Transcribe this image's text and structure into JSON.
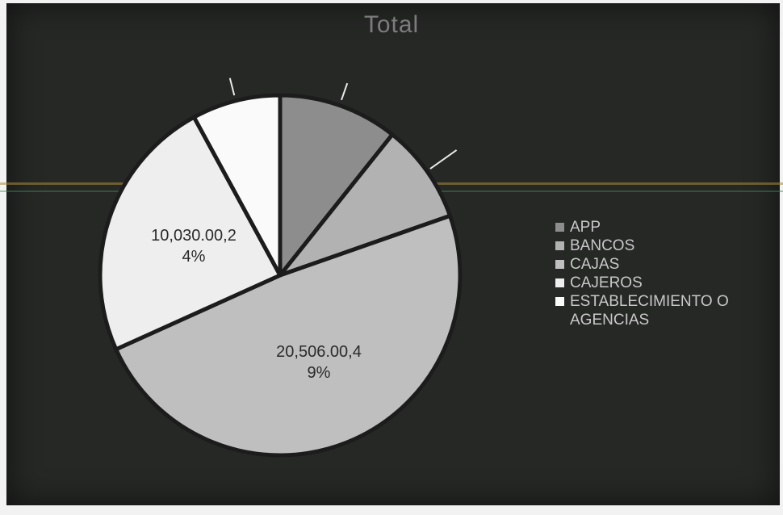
{
  "chart_data": {
    "type": "pie",
    "title": "Total",
    "categories": [
      "APP",
      "BANCOS",
      "CAJAS",
      "CAJEROS",
      "ESTABLECIMIENTO O AGENCIAS"
    ],
    "values": [
      10.8,
      9.0,
      49,
      24,
      8.0
    ],
    "colors": [
      "#8d8d8d",
      "#b2b2b2",
      "#bfbfbf",
      "#eeeeee",
      "#fafafa"
    ],
    "data_labels": [
      {
        "category": "CAJAS",
        "lines": [
          "20,506.00,4",
          "9%"
        ]
      },
      {
        "category": "CAJEROS",
        "lines": [
          "10,030.00,2",
          "4%"
        ]
      }
    ],
    "legend_position": "right"
  }
}
